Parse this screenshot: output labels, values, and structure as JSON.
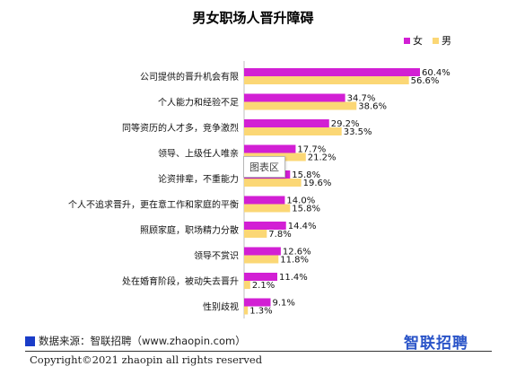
{
  "chart_data": {
    "type": "bar",
    "orientation": "horizontal",
    "title": "男女职场人晋升障碍",
    "categories": [
      "公司提供的晋升机会有限",
      "个人能力和经验不足",
      "同等资历的人才多，竞争激烈",
      "领导、上级任人唯亲",
      "论资排辈，不重能力",
      "个人不追求晋升，更在意工作和家庭的平衡",
      "照顾家庭，职场精力分散",
      "领导不赏识",
      "处在婚育阶段，被动失去晋升",
      "性别歧视"
    ],
    "series": [
      {
        "name": "女",
        "color": "#d21fd4",
        "values": [
          60.4,
          34.7,
          29.2,
          17.7,
          15.8,
          14.0,
          14.4,
          12.6,
          11.4,
          9.1
        ],
        "labels": [
          "60.4%",
          "34.7%",
          "29.2%",
          "17.7%",
          "15.8%",
          "14.0%",
          "14.4%",
          "12.6%",
          "11.4%",
          "9.1%"
        ]
      },
      {
        "name": "男",
        "color": "#fbd775",
        "values": [
          56.6,
          38.6,
          33.5,
          21.2,
          19.6,
          15.8,
          7.8,
          11.8,
          2.1,
          1.3
        ],
        "labels": [
          "56.6%",
          "38.6%",
          "33.5%",
          "21.2%",
          "19.6%",
          "15.8%",
          "7.8%",
          "11.8%",
          "2.1%",
          "1.3%"
        ]
      }
    ],
    "xlim": [
      0,
      65
    ],
    "legend": "top-right",
    "grid": false
  },
  "tooltip": "图表区",
  "footer": {
    "source": "数据来源：智联招聘（www.zhaopin.com）",
    "logo": "智联招聘",
    "copyright": "Copyright©2021 zhaopin all rights reserved"
  },
  "colors": {
    "source_square": "#1a3cc8",
    "logo": "#2a54c8"
  }
}
